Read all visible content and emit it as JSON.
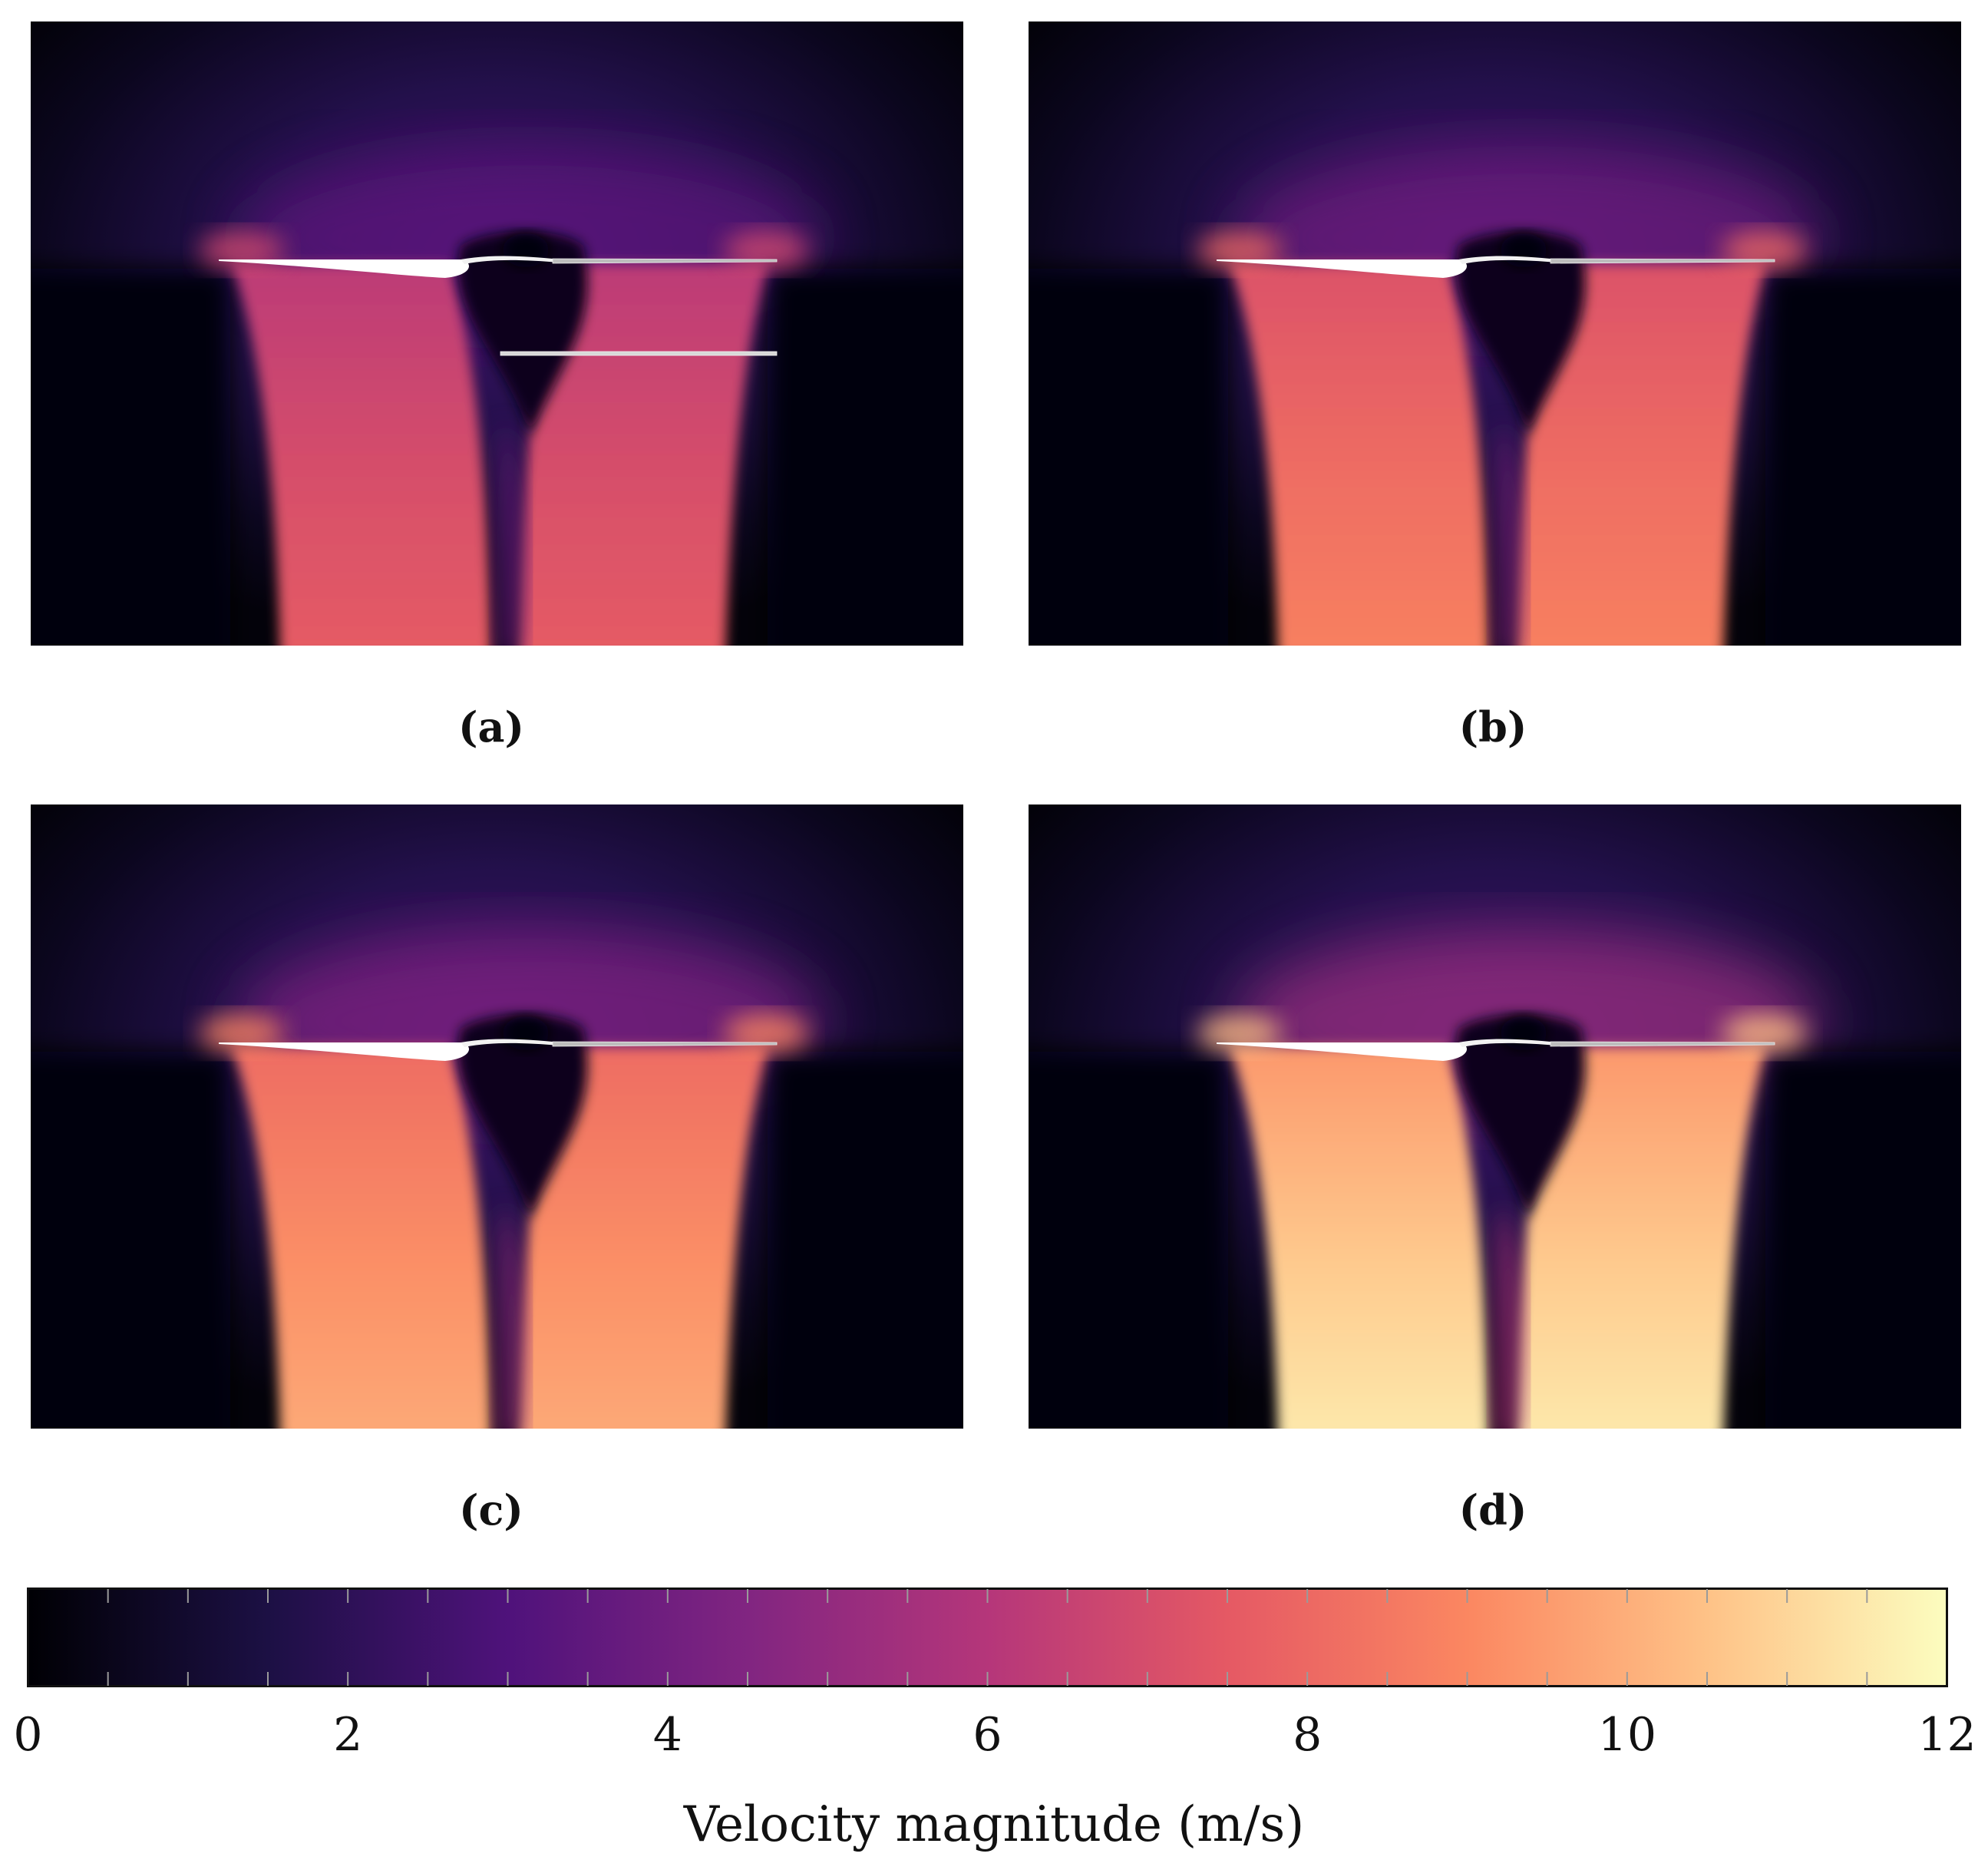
{
  "panels": [
    {
      "id": "a",
      "label": "(a)",
      "peak_velocity": 7.6,
      "second_rotor_line": true
    },
    {
      "id": "b",
      "label": "(b)",
      "peak_velocity": 8.8,
      "second_rotor_line": false
    },
    {
      "id": "c",
      "label": "(c)",
      "peak_velocity": 9.9,
      "second_rotor_line": false
    },
    {
      "id": "d",
      "label": "(d)",
      "peak_velocity": 11.5,
      "second_rotor_line": false
    }
  ],
  "chart_data": {
    "type": "heatmap",
    "colorbar": {
      "title": "Velocity magnitude (m/s)",
      "range": [
        0,
        12
      ],
      "tick_labels": [
        "0",
        "2",
        "4",
        "6",
        "8",
        "10",
        "12"
      ],
      "tick_values": [
        0,
        2,
        4,
        6,
        8,
        10,
        12
      ],
      "colormap": "magma",
      "stops": [
        "#000004",
        "#1c1044",
        "#4f127b",
        "#812581",
        "#b5367a",
        "#e55964",
        "#fb8761",
        "#fec287",
        "#fcfdbf"
      ]
    }
  }
}
